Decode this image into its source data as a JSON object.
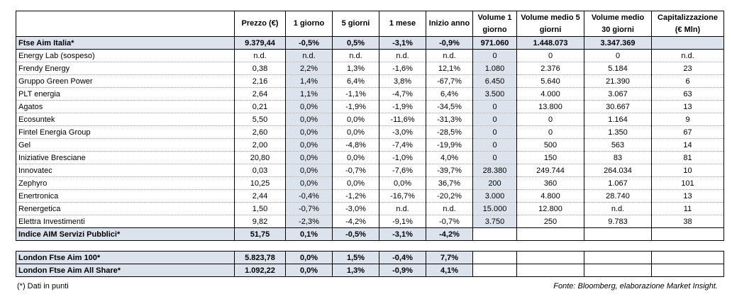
{
  "header": {
    "price": "Prezzo (€)",
    "d1": "1 giorno",
    "d5": "5 giorni",
    "m1": "1 mese",
    "ytd": "Inizio anno",
    "vol1": "Volume 1 giorno",
    "vol5": "Volume medio 5 giorni",
    "vol30": "Volume medio 30 giorni",
    "cap": "Capitalizzazione (€ Mln)"
  },
  "index_top": {
    "name": "Ftse Aim Italia*",
    "price": "9.379,44",
    "d1": "-0,5%",
    "d5": "0,5%",
    "m1": "-3,1%",
    "ytd": "-0,9%",
    "vol1": "971.060",
    "vol5": "1.448.073",
    "vol30": "3.347.369",
    "cap": ""
  },
  "rows": [
    {
      "name": "Energy Lab (sospeso)",
      "price": "n.d.",
      "d1": "n.d.",
      "d5": "n.d.",
      "m1": "n.d.",
      "ytd": "n.d.",
      "vol1": "0",
      "vol5": "0",
      "vol30": "0",
      "cap": "n.d."
    },
    {
      "name": "Frendy Energy",
      "price": "0,38",
      "d1": "2,2%",
      "d5": "1,3%",
      "m1": "-1,6%",
      "ytd": "12,1%",
      "vol1": "1.080",
      "vol5": "2.376",
      "vol30": "5.184",
      "cap": "23"
    },
    {
      "name": "Gruppo Green Power",
      "price": "2,16",
      "d1": "1,4%",
      "d5": "6,4%",
      "m1": "3,8%",
      "ytd": "-67,7%",
      "vol1": "6.450",
      "vol5": "5.640",
      "vol30": "21.390",
      "cap": "6"
    },
    {
      "name": "PLT energia",
      "price": "2,64",
      "d1": "1,1%",
      "d5": "-1,1%",
      "m1": "-4,7%",
      "ytd": "6,4%",
      "vol1": "3.500",
      "vol5": "4.000",
      "vol30": "3.067",
      "cap": "63"
    },
    {
      "name": "Agatos",
      "price": "0,21",
      "d1": "0,0%",
      "d5": "-1,9%",
      "m1": "-1,9%",
      "ytd": "-34,5%",
      "vol1": "0",
      "vol5": "13.800",
      "vol30": "30.667",
      "cap": "13"
    },
    {
      "name": "Ecosuntek",
      "price": "5,50",
      "d1": "0,0%",
      "d5": "0,0%",
      "m1": "-11,6%",
      "ytd": "-31,3%",
      "vol1": "0",
      "vol5": "0",
      "vol30": "1.164",
      "cap": "9"
    },
    {
      "name": "Fintel Energia Group",
      "price": "2,60",
      "d1": "0,0%",
      "d5": "0,0%",
      "m1": "-3,0%",
      "ytd": "-28,5%",
      "vol1": "0",
      "vol5": "0",
      "vol30": "1.350",
      "cap": "67"
    },
    {
      "name": "Gel",
      "price": "2,00",
      "d1": "0,0%",
      "d5": "-4,8%",
      "m1": "-7,4%",
      "ytd": "-19,9%",
      "vol1": "0",
      "vol5": "500",
      "vol30": "563",
      "cap": "14"
    },
    {
      "name": "Iniziative Bresciane",
      "price": "20,80",
      "d1": "0,0%",
      "d5": "0,0%",
      "m1": "-1,0%",
      "ytd": "4,0%",
      "vol1": "0",
      "vol5": "150",
      "vol30": "83",
      "cap": "81"
    },
    {
      "name": "Innovatec",
      "price": "0,03",
      "d1": "0,0%",
      "d5": "-0,7%",
      "m1": "-7,6%",
      "ytd": "-39,7%",
      "vol1": "28.380",
      "vol5": "249.744",
      "vol30": "264.034",
      "cap": "10"
    },
    {
      "name": "Zephyro",
      "price": "10,25",
      "d1": "0,0%",
      "d5": "0,0%",
      "m1": "0,0%",
      "ytd": "36,7%",
      "vol1": "200",
      "vol5": "360",
      "vol30": "1.067",
      "cap": "101"
    },
    {
      "name": "Enertronica",
      "price": "2,44",
      "d1": "-0,4%",
      "d5": "-1,2%",
      "m1": "-16,7%",
      "ytd": "-20,2%",
      "vol1": "3.000",
      "vol5": "4.800",
      "vol30": "28.740",
      "cap": "13"
    },
    {
      "name": "Renergetica",
      "price": "1,50",
      "d1": "-0,7%",
      "d5": "-3,0%",
      "m1": "n.d.",
      "ytd": "n.d.",
      "vol1": "15.000",
      "vol5": "12.800",
      "vol30": "n.d.",
      "cap": "11"
    },
    {
      "name": "Elettra Investimenti",
      "price": "9,82",
      "d1": "-2,3%",
      "d5": "-4,2%",
      "m1": "-9,1%",
      "ytd": "-0,7%",
      "vol1": "3.750",
      "vol5": "250",
      "vol30": "9.783",
      "cap": "38"
    }
  ],
  "index_bottom": {
    "name": "Indice AIM Servizi Pubblici*",
    "price": "51,75",
    "d1": "0,1%",
    "d5": "-0,5%",
    "m1": "-3,1%",
    "ytd": "-4,2%"
  },
  "london": [
    {
      "name": "London Ftse Aim 100*",
      "price": "5.823,78",
      "d1": "0,0%",
      "d5": "1,5%",
      "m1": "-0,4%",
      "ytd": "7,7%"
    },
    {
      "name": "London Ftse Aim All Share*",
      "price": "1.092,22",
      "d1": "0,0%",
      "d5": "1,3%",
      "m1": "-0,9%",
      "ytd": "4,1%"
    }
  ],
  "footer": {
    "note": "(*) Dati in punti",
    "source": "Fonte: Bloomberg, elaborazione Market Insight."
  }
}
